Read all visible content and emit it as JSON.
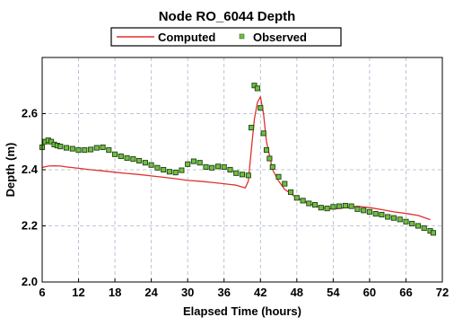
{
  "chart_data": {
    "type": "line",
    "title": "Node RO_6044 Depth",
    "xlabel": "Elapsed Time (hours)",
    "ylabel": "Depth (m)",
    "xlim": [
      6,
      72
    ],
    "ylim": [
      2.0,
      2.8
    ],
    "xticks": [
      6,
      12,
      18,
      24,
      30,
      36,
      42,
      48,
      54,
      60,
      66,
      72
    ],
    "yticks": [
      2.0,
      2.2,
      2.4,
      2.6
    ],
    "ytick_labels": [
      "2.0",
      "2.2",
      "2.4",
      "2.6"
    ],
    "grid": true,
    "legend_position": "top-center",
    "series": [
      {
        "name": "Computed",
        "kind": "line",
        "color": "#e0312c",
        "x": [
          6,
          7,
          8,
          9,
          10,
          12,
          14,
          16,
          18,
          20,
          22,
          24,
          26,
          28,
          30,
          32,
          34,
          36,
          38,
          39.5,
          40,
          40.5,
          41,
          41.5,
          42,
          42.5,
          43,
          44,
          45,
          46,
          48,
          50,
          52,
          54,
          56,
          58,
          60,
          62,
          64,
          66,
          68,
          70
        ],
        "y": [
          2.408,
          2.413,
          2.414,
          2.413,
          2.41,
          2.405,
          2.4,
          2.396,
          2.391,
          2.387,
          2.383,
          2.378,
          2.373,
          2.368,
          2.362,
          2.359,
          2.355,
          2.35,
          2.345,
          2.335,
          2.36,
          2.47,
          2.58,
          2.64,
          2.66,
          2.6,
          2.5,
          2.4,
          2.36,
          2.33,
          2.3,
          2.28,
          2.265,
          2.26,
          2.265,
          2.27,
          2.265,
          2.258,
          2.25,
          2.244,
          2.237,
          2.222
        ]
      },
      {
        "name": "Observed",
        "kind": "scatter",
        "color": "#2f8a1f",
        "x": [
          6,
          6.5,
          7,
          7.5,
          8,
          8.5,
          9,
          10,
          11,
          12,
          13,
          14,
          15,
          16,
          17,
          18,
          19,
          20,
          21,
          22,
          23,
          24,
          25,
          26,
          27,
          28,
          29,
          30,
          31,
          32,
          33,
          34,
          35,
          36,
          37,
          38,
          39,
          40,
          40.5,
          41,
          41.5,
          42,
          42.5,
          43,
          43.5,
          44,
          45,
          46,
          47,
          48,
          49,
          50,
          51,
          52,
          53,
          54,
          55,
          56,
          57,
          58,
          59,
          60,
          61,
          62,
          63,
          64,
          65,
          66,
          67,
          68,
          69,
          70,
          70.5
        ],
        "y": [
          2.48,
          2.5,
          2.505,
          2.5,
          2.49,
          2.486,
          2.483,
          2.478,
          2.475,
          2.47,
          2.47,
          2.472,
          2.478,
          2.48,
          2.47,
          2.455,
          2.448,
          2.442,
          2.438,
          2.432,
          2.425,
          2.417,
          2.407,
          2.4,
          2.393,
          2.39,
          2.398,
          2.42,
          2.43,
          2.425,
          2.41,
          2.407,
          2.412,
          2.41,
          2.4,
          2.388,
          2.383,
          2.38,
          2.55,
          2.7,
          2.69,
          2.62,
          2.53,
          2.47,
          2.44,
          2.41,
          2.375,
          2.35,
          2.32,
          2.3,
          2.29,
          2.28,
          2.275,
          2.265,
          2.262,
          2.268,
          2.27,
          2.272,
          2.27,
          2.26,
          2.255,
          2.25,
          2.243,
          2.24,
          2.232,
          2.228,
          2.223,
          2.215,
          2.208,
          2.2,
          2.192,
          2.182,
          2.175
        ]
      }
    ]
  }
}
